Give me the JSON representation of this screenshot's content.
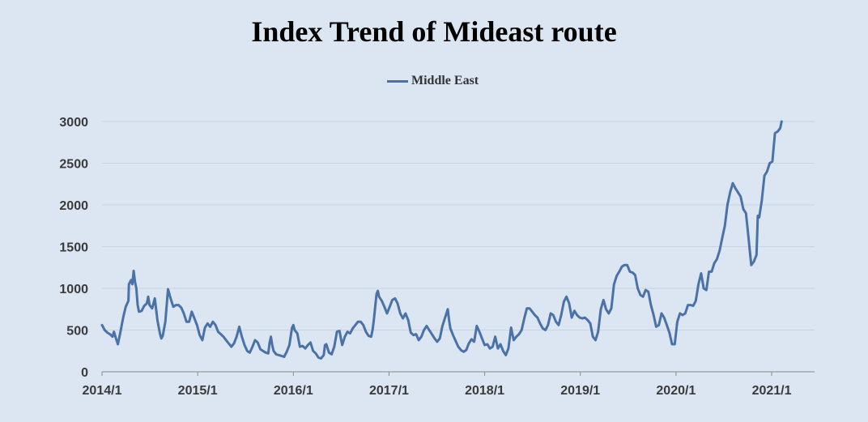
{
  "chart_data": {
    "type": "line",
    "title": "Index Trend of Mideast route",
    "legend_position": "top",
    "series": [
      {
        "name": "Middle East",
        "color": "#4a72a6",
        "points": [
          [
            0.0,
            560
          ],
          [
            0.1,
            500
          ],
          [
            0.2,
            470
          ],
          [
            0.3,
            450
          ],
          [
            0.4,
            420
          ],
          [
            0.45,
            480
          ],
          [
            0.55,
            380
          ],
          [
            0.6,
            330
          ],
          [
            0.7,
            480
          ],
          [
            0.8,
            650
          ],
          [
            0.9,
            780
          ],
          [
            1.0,
            850
          ],
          [
            1.02,
            1050
          ],
          [
            1.1,
            1100
          ],
          [
            1.15,
            1050
          ],
          [
            1.2,
            1210
          ],
          [
            1.25,
            1080
          ],
          [
            1.3,
            1000
          ],
          [
            1.35,
            800
          ],
          [
            1.4,
            720
          ],
          [
            1.5,
            730
          ],
          [
            1.6,
            790
          ],
          [
            1.7,
            820
          ],
          [
            1.75,
            900
          ],
          [
            1.8,
            800
          ],
          [
            1.9,
            760
          ],
          [
            2.0,
            880
          ],
          [
            2.1,
            620
          ],
          [
            2.2,
            450
          ],
          [
            2.25,
            400
          ],
          [
            2.3,
            430
          ],
          [
            2.4,
            600
          ],
          [
            2.5,
            990
          ],
          [
            2.6,
            880
          ],
          [
            2.7,
            780
          ],
          [
            2.8,
            800
          ],
          [
            2.9,
            800
          ],
          [
            3.0,
            770
          ],
          [
            3.1,
            700
          ],
          [
            3.2,
            600
          ],
          [
            3.3,
            600
          ],
          [
            3.4,
            720
          ],
          [
            3.5,
            640
          ],
          [
            3.6,
            560
          ],
          [
            3.7,
            440
          ],
          [
            3.8,
            380
          ],
          [
            3.9,
            530
          ],
          [
            4.0,
            580
          ],
          [
            4.1,
            540
          ],
          [
            4.2,
            600
          ],
          [
            4.3,
            560
          ],
          [
            4.4,
            480
          ],
          [
            4.5,
            450
          ],
          [
            4.6,
            420
          ],
          [
            4.7,
            380
          ],
          [
            4.8,
            340
          ],
          [
            4.9,
            300
          ],
          [
            5.0,
            340
          ],
          [
            5.1,
            420
          ],
          [
            5.2,
            540
          ],
          [
            5.3,
            420
          ],
          [
            5.4,
            320
          ],
          [
            5.5,
            250
          ],
          [
            5.6,
            230
          ],
          [
            5.7,
            300
          ],
          [
            5.8,
            380
          ],
          [
            5.9,
            350
          ],
          [
            6.0,
            270
          ],
          [
            6.1,
            250
          ],
          [
            6.2,
            230
          ],
          [
            6.3,
            220
          ],
          [
            6.35,
            350
          ],
          [
            6.4,
            420
          ],
          [
            6.45,
            320
          ],
          [
            6.5,
            250
          ],
          [
            6.6,
            210
          ],
          [
            6.7,
            200
          ],
          [
            6.8,
            190
          ],
          [
            6.9,
            180
          ],
          [
            7.0,
            240
          ],
          [
            7.1,
            320
          ],
          [
            7.2,
            530
          ],
          [
            7.25,
            560
          ],
          [
            7.3,
            500
          ],
          [
            7.4,
            460
          ],
          [
            7.5,
            300
          ],
          [
            7.6,
            310
          ],
          [
            7.7,
            280
          ],
          [
            7.8,
            320
          ],
          [
            7.9,
            350
          ],
          [
            8.0,
            250
          ],
          [
            8.1,
            220
          ],
          [
            8.2,
            170
          ],
          [
            8.3,
            160
          ],
          [
            8.4,
            200
          ],
          [
            8.45,
            320
          ],
          [
            8.5,
            330
          ],
          [
            8.6,
            230
          ],
          [
            8.7,
            210
          ],
          [
            8.8,
            300
          ],
          [
            8.9,
            480
          ],
          [
            9.0,
            490
          ],
          [
            9.05,
            400
          ],
          [
            9.1,
            320
          ],
          [
            9.2,
            420
          ],
          [
            9.3,
            480
          ],
          [
            9.4,
            460
          ],
          [
            9.5,
            520
          ],
          [
            9.6,
            560
          ],
          [
            9.7,
            600
          ],
          [
            9.8,
            600
          ],
          [
            9.9,
            560
          ],
          [
            10.0,
            480
          ],
          [
            10.1,
            430
          ],
          [
            10.2,
            420
          ],
          [
            10.25,
            500
          ],
          [
            10.3,
            620
          ],
          [
            10.4,
            930
          ],
          [
            10.45,
            970
          ],
          [
            10.5,
            900
          ],
          [
            10.6,
            850
          ],
          [
            10.7,
            780
          ],
          [
            10.8,
            700
          ],
          [
            10.9,
            780
          ],
          [
            11.0,
            860
          ],
          [
            11.1,
            880
          ],
          [
            11.2,
            820
          ],
          [
            11.3,
            700
          ],
          [
            11.4,
            640
          ],
          [
            11.5,
            700
          ],
          [
            11.6,
            620
          ],
          [
            11.7,
            470
          ],
          [
            11.8,
            440
          ],
          [
            11.9,
            450
          ],
          [
            12.0,
            380
          ],
          [
            12.1,
            420
          ],
          [
            12.2,
            500
          ],
          [
            12.3,
            550
          ],
          [
            12.4,
            500
          ],
          [
            12.5,
            450
          ],
          [
            12.6,
            400
          ],
          [
            12.7,
            360
          ],
          [
            12.8,
            400
          ],
          [
            12.9,
            550
          ],
          [
            13.0,
            650
          ],
          [
            13.1,
            750
          ],
          [
            13.15,
            620
          ],
          [
            13.2,
            520
          ],
          [
            13.3,
            440
          ],
          [
            13.4,
            370
          ],
          [
            13.5,
            300
          ],
          [
            13.6,
            260
          ],
          [
            13.7,
            240
          ],
          [
            13.8,
            260
          ],
          [
            13.9,
            340
          ],
          [
            14.0,
            390
          ],
          [
            14.1,
            360
          ],
          [
            14.2,
            550
          ],
          [
            14.3,
            480
          ],
          [
            14.4,
            400
          ],
          [
            14.5,
            320
          ],
          [
            14.6,
            330
          ],
          [
            14.7,
            280
          ],
          [
            14.8,
            300
          ],
          [
            14.9,
            420
          ],
          [
            15.0,
            280
          ],
          [
            15.1,
            330
          ],
          [
            15.2,
            250
          ],
          [
            15.3,
            200
          ],
          [
            15.4,
            280
          ],
          [
            15.5,
            530
          ],
          [
            15.6,
            380
          ],
          [
            15.7,
            420
          ],
          [
            15.8,
            450
          ],
          [
            15.9,
            500
          ],
          [
            16.0,
            640
          ],
          [
            16.1,
            760
          ],
          [
            16.2,
            760
          ],
          [
            16.3,
            720
          ],
          [
            16.4,
            680
          ],
          [
            16.5,
            650
          ],
          [
            16.6,
            580
          ],
          [
            16.7,
            520
          ],
          [
            16.8,
            500
          ],
          [
            16.9,
            560
          ],
          [
            17.0,
            700
          ],
          [
            17.1,
            680
          ],
          [
            17.2,
            600
          ],
          [
            17.3,
            560
          ],
          [
            17.4,
            680
          ],
          [
            17.5,
            840
          ],
          [
            17.6,
            900
          ],
          [
            17.7,
            820
          ],
          [
            17.8,
            650
          ],
          [
            17.9,
            730
          ],
          [
            18.0,
            680
          ],
          [
            18.1,
            650
          ],
          [
            18.2,
            640
          ],
          [
            18.3,
            650
          ],
          [
            18.4,
            620
          ],
          [
            18.5,
            580
          ],
          [
            18.6,
            420
          ],
          [
            18.7,
            380
          ],
          [
            18.8,
            480
          ],
          [
            18.9,
            750
          ],
          [
            19.0,
            860
          ],
          [
            19.1,
            750
          ],
          [
            19.2,
            700
          ],
          [
            19.3,
            760
          ],
          [
            19.4,
            1050
          ],
          [
            19.5,
            1150
          ],
          [
            19.6,
            1200
          ],
          [
            19.7,
            1260
          ],
          [
            19.8,
            1280
          ],
          [
            19.9,
            1280
          ],
          [
            20.0,
            1200
          ],
          [
            20.1,
            1190
          ],
          [
            20.2,
            1160
          ],
          [
            20.3,
            1000
          ],
          [
            20.4,
            920
          ],
          [
            20.5,
            900
          ],
          [
            20.6,
            980
          ],
          [
            20.7,
            960
          ],
          [
            20.8,
            800
          ],
          [
            20.9,
            680
          ],
          [
            21.0,
            540
          ],
          [
            21.1,
            560
          ],
          [
            21.2,
            700
          ],
          [
            21.3,
            650
          ],
          [
            21.4,
            560
          ],
          [
            21.5,
            470
          ],
          [
            21.6,
            330
          ],
          [
            21.7,
            330
          ],
          [
            21.8,
            600
          ],
          [
            21.9,
            700
          ],
          [
            22.0,
            680
          ],
          [
            22.1,
            700
          ],
          [
            22.2,
            800
          ],
          [
            22.3,
            800
          ],
          [
            22.4,
            790
          ],
          [
            22.5,
            850
          ],
          [
            22.6,
            1050
          ],
          [
            22.7,
            1180
          ],
          [
            22.8,
            1000
          ],
          [
            22.9,
            980
          ],
          [
            23.0,
            1200
          ],
          [
            23.1,
            1200
          ],
          [
            23.2,
            1300
          ],
          [
            23.3,
            1350
          ],
          [
            23.4,
            1450
          ],
          [
            23.5,
            1600
          ],
          [
            23.6,
            1750
          ],
          [
            23.7,
            2000
          ],
          [
            23.8,
            2150
          ],
          [
            23.9,
            2260
          ],
          [
            24.0,
            2200
          ],
          [
            24.1,
            2150
          ],
          [
            24.2,
            2100
          ],
          [
            24.3,
            1950
          ],
          [
            24.4,
            1900
          ],
          [
            24.5,
            1600
          ],
          [
            24.6,
            1280
          ],
          [
            24.7,
            1320
          ],
          [
            24.8,
            1400
          ],
          [
            24.85,
            1870
          ],
          [
            24.9,
            1850
          ],
          [
            25.0,
            2050
          ],
          [
            25.1,
            2350
          ],
          [
            25.2,
            2400
          ],
          [
            25.3,
            2500
          ],
          [
            25.4,
            2520
          ],
          [
            25.5,
            2860
          ],
          [
            25.6,
            2880
          ],
          [
            25.7,
            2920
          ],
          [
            25.75,
            3000
          ]
        ]
      }
    ],
    "x_ticks": [
      {
        "label": "2014/1",
        "value": 0
      },
      {
        "label": "2015/1",
        "value": 3.625
      },
      {
        "label": "2016/1",
        "value": 7.25
      },
      {
        "label": "2017/1",
        "value": 10.875
      },
      {
        "label": "2018/1",
        "value": 14.5
      },
      {
        "label": "2019/1",
        "value": 18.125
      },
      {
        "label": "2020/1",
        "value": 21.75
      },
      {
        "label": "2021/1",
        "value": 25.375
      }
    ],
    "xlim": [
      0,
      27.0
    ],
    "y_ticks": [
      "0",
      "500",
      "1000",
      "1500",
      "2000",
      "2500",
      "3000"
    ],
    "ylim": [
      0,
      3000
    ],
    "grid": true
  }
}
